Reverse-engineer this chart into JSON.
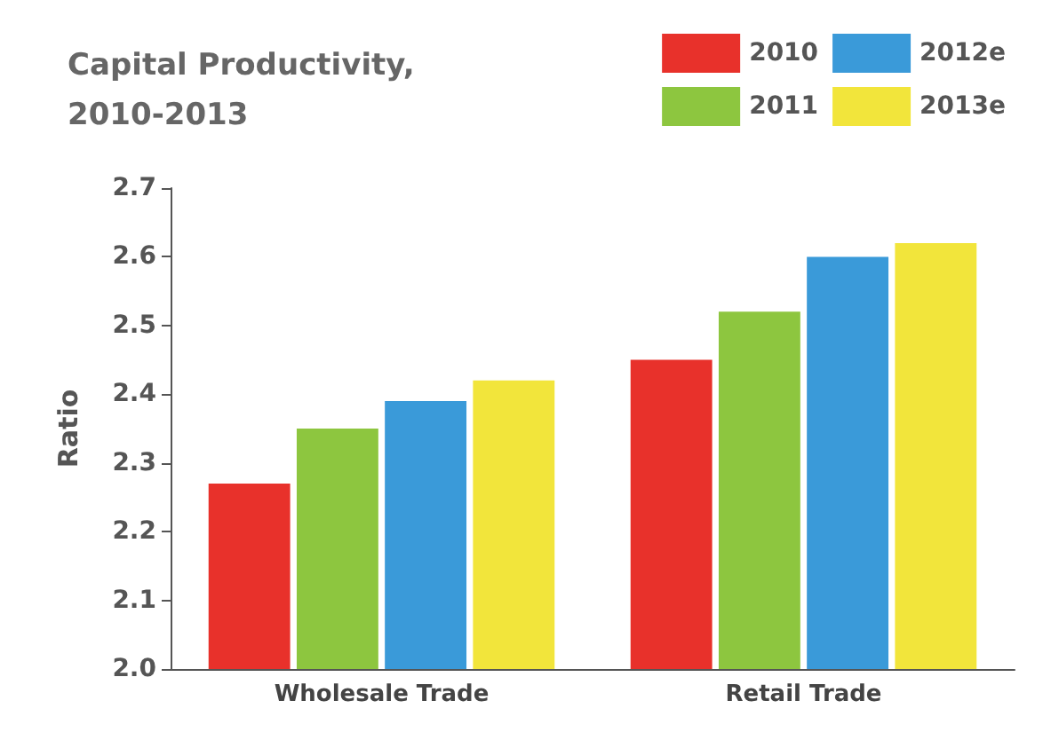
{
  "chart_data": {
    "type": "bar",
    "title": "Capital Productivity, 2010-2013",
    "ylabel": "Ratio",
    "categories": [
      "Wholesale Trade",
      "Retail Trade"
    ],
    "series": [
      {
        "name": "2010",
        "color": "#e8312b",
        "values": [
          2.27,
          2.45
        ]
      },
      {
        "name": "2011",
        "color": "#8dc63f",
        "values": [
          2.35,
          2.52
        ]
      },
      {
        "name": "2012e",
        "color": "#3a9ad9",
        "values": [
          2.39,
          2.6
        ]
      },
      {
        "name": "2013e",
        "color": "#f2e53b",
        "values": [
          2.42,
          2.62
        ]
      }
    ],
    "ylim": [
      2.0,
      2.7
    ],
    "yticks": [
      {
        "value": 2,
        "label": "2.0"
      },
      2.1,
      2.2,
      2.3,
      2.4,
      2.5,
      2.6,
      2.7
    ],
    "grid": false,
    "legend": "top right"
  }
}
